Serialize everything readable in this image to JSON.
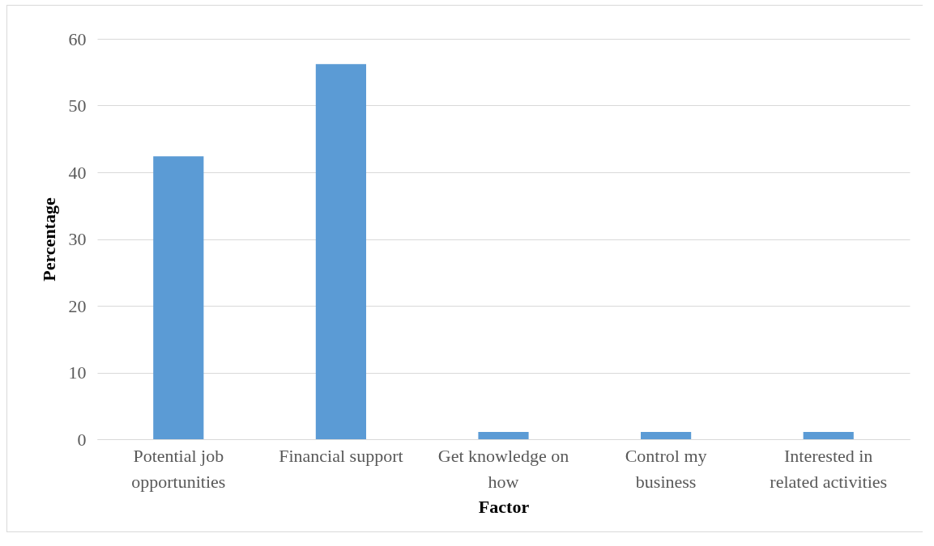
{
  "chart_data": {
    "type": "bar",
    "xlabel": "Factor",
    "ylabel": "Percentage",
    "categories": [
      "Potential job opportunities",
      "Financial support",
      "Get knowledge on how",
      "Control my business",
      "Interested in related activities"
    ],
    "values": [
      42.4,
      56.2,
      1.1,
      1.1,
      1.1
    ],
    "color": "#5b9bd5",
    "ylim": [
      0,
      60
    ],
    "yticks": [
      0,
      10,
      20,
      30,
      40,
      50,
      60
    ],
    "grid": "y"
  }
}
